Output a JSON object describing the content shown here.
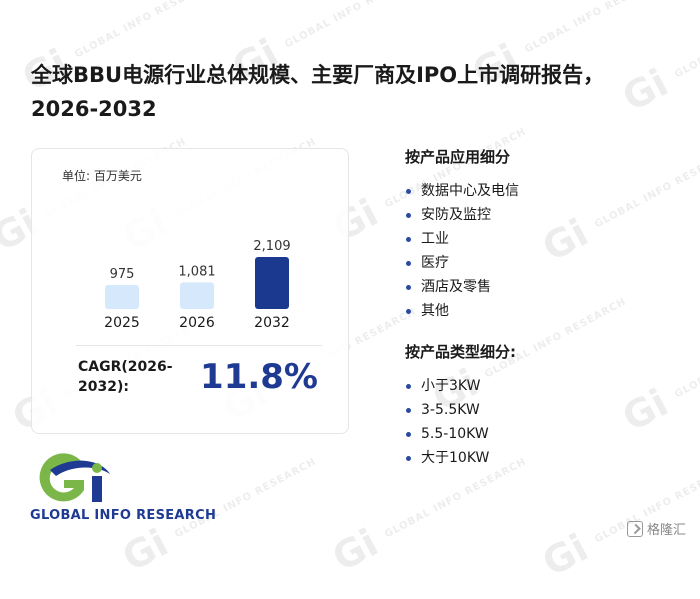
{
  "title": "全球BBU电源行业总体规模、主要厂商及IPO上市调研报告，2026-2032",
  "card": {
    "unit": "单位: 百万美元",
    "cagr_label": "CAGR(2026-2032):",
    "cagr_value": "11.8%"
  },
  "chart_data": {
    "type": "bar",
    "categories": [
      "2025",
      "2026",
      "2032"
    ],
    "values": [
      975,
      1081,
      2109
    ],
    "value_labels": [
      "975",
      "1,081",
      "2,109"
    ],
    "bar_colors": [
      "#d6e8fb",
      "#d6e8fb",
      "#1b3a8f"
    ],
    "ylim": [
      0,
      2109
    ]
  },
  "segments": {
    "application_title": "按产品应用细分",
    "application_items": [
      "数据中心及电信",
      "安防及监控",
      "工业",
      "医疗",
      "酒店及零售",
      "其他"
    ],
    "type_title": "按产品类型细分:",
    "type_items": [
      "小于3KW",
      "3-5.5KW",
      "5.5-10KW",
      "大于10KW"
    ]
  },
  "brand": {
    "logo_text": "Gi",
    "name": "GLOBAL INFO RESEARCH",
    "watermark_text": "GLOBAL INFO RESEARCH"
  },
  "footer": {
    "source_label": "格隆汇"
  },
  "colors": {
    "accent": "#1f3a93",
    "logo_green": "#7ab648",
    "logo_blue": "#1f3a93"
  }
}
